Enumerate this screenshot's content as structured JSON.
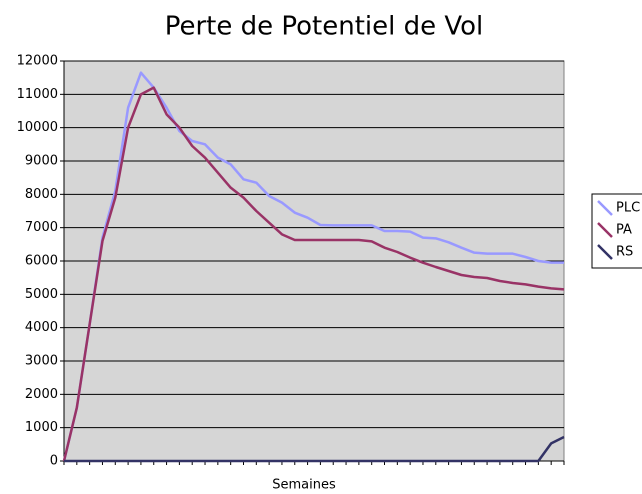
{
  "chart_data": {
    "type": "line",
    "title": "Perte de Potentiel de Vol",
    "x_label": "Semaines",
    "categories": [
      null,
      null,
      null,
      null,
      null,
      null,
      null,
      null,
      null,
      null,
      null,
      null,
      null,
      null,
      null,
      null,
      null,
      null,
      null,
      null,
      null,
      null,
      null,
      null,
      null,
      null,
      null,
      null,
      null,
      null,
      null,
      null,
      null,
      null,
      null,
      null,
      null,
      null,
      null,
      null
    ],
    "series": [
      {
        "name": "PLC",
        "color": "#9999ff",
        "values": [
          0,
          1600,
          4100,
          6700,
          8100,
          10600,
          11650,
          11200,
          10600,
          9900,
          9600,
          9500,
          9100,
          8900,
          8450,
          8350,
          7950,
          7750,
          7450,
          7300,
          7080,
          7070,
          7070,
          7070,
          7070,
          6900,
          6900,
          6880,
          6700,
          6680,
          6560,
          6400,
          6250,
          6220,
          6220,
          6220,
          6120,
          6000,
          5950,
          5950
        ]
      },
      {
        "name": "PA",
        "color": "#993366",
        "values": [
          0,
          1600,
          4100,
          6600,
          7900,
          10000,
          11000,
          11200,
          10400,
          10000,
          9450,
          9100,
          8650,
          8200,
          7900,
          7500,
          7150,
          6800,
          6630,
          6630,
          6630,
          6630,
          6630,
          6630,
          6590,
          6400,
          6270,
          6100,
          5950,
          5820,
          5700,
          5580,
          5520,
          5490,
          5400,
          5340,
          5300,
          5230,
          5180,
          5150
        ]
      },
      {
        "name": "RS",
        "color": "#333366",
        "values": [
          0,
          0,
          0,
          0,
          0,
          0,
          0,
          0,
          0,
          0,
          0,
          0,
          0,
          0,
          0,
          0,
          0,
          0,
          0,
          0,
          0,
          0,
          0,
          0,
          0,
          0,
          0,
          0,
          0,
          0,
          0,
          0,
          0,
          0,
          0,
          0,
          0,
          0,
          530,
          720
        ]
      }
    ],
    "ylim": [
      0,
      12000
    ],
    "yticks": [
      0,
      1000,
      2000,
      3000,
      4000,
      5000,
      6000,
      7000,
      8000,
      9000,
      10000,
      11000,
      12000
    ],
    "grid": true,
    "legend": "right",
    "background": "#d6d6d6"
  }
}
